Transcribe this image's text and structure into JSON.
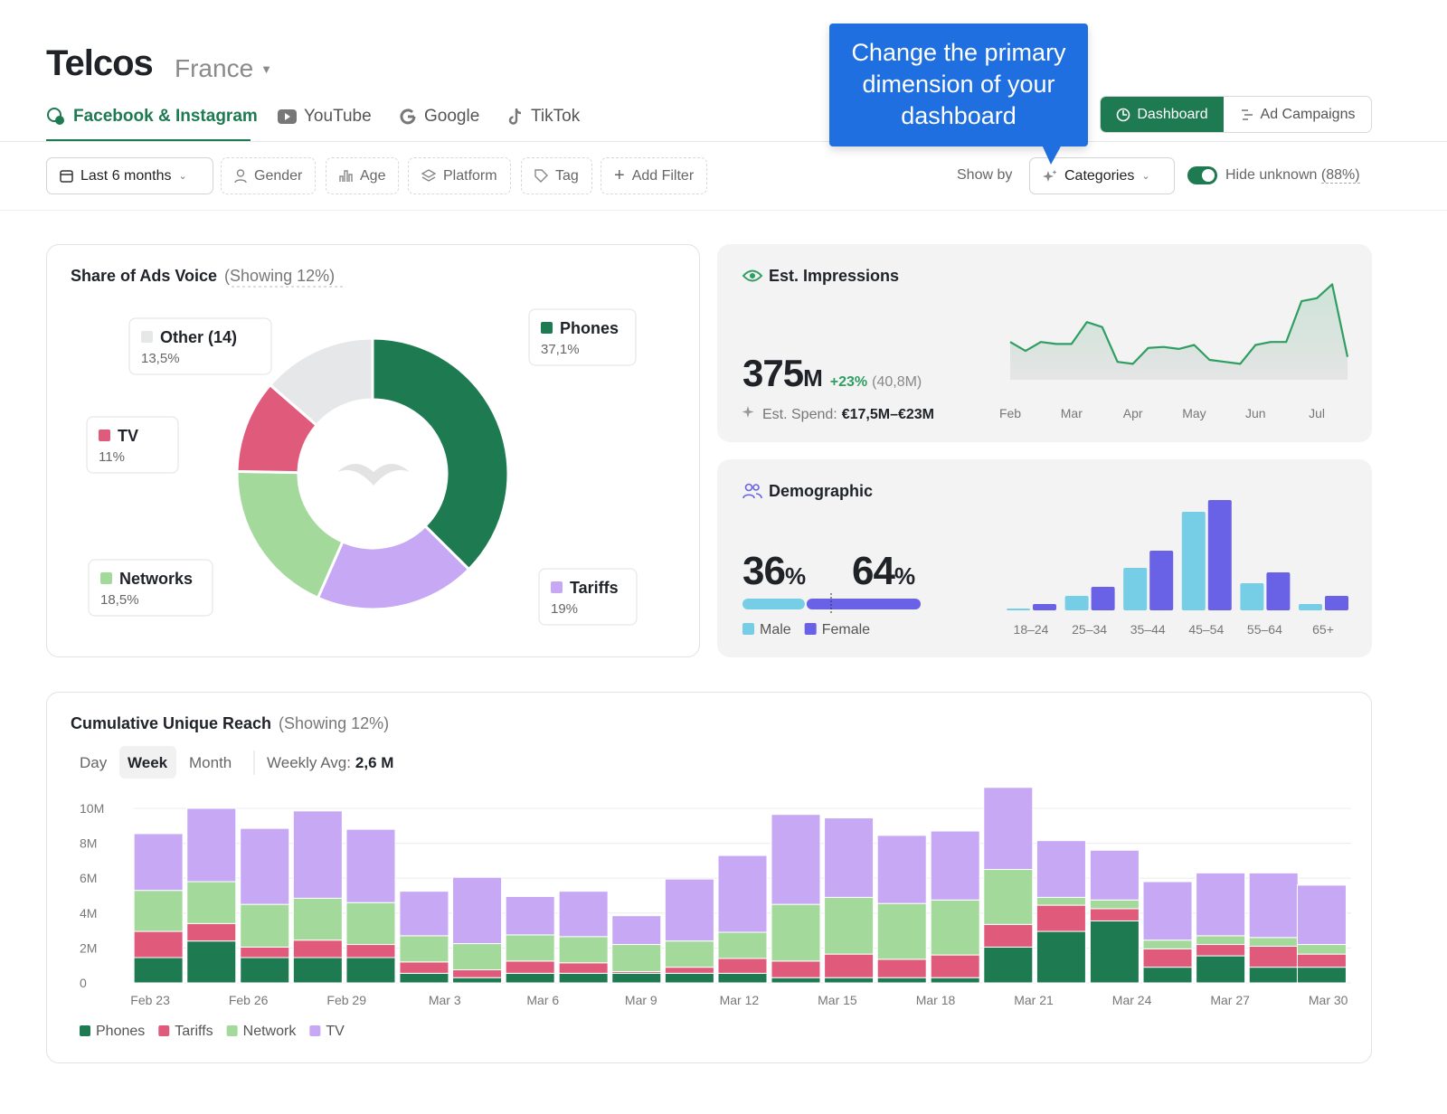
{
  "header": {
    "title": "Telcos",
    "country": "France"
  },
  "tabs": [
    "Facebook & Instagram",
    "YouTube",
    "Google",
    "TikTok"
  ],
  "filters": [
    "Last 6 months",
    "Gender",
    "Age",
    "Platform",
    "Tag",
    "Add Filter"
  ],
  "show_by": {
    "label": "Show by",
    "value": "Categories"
  },
  "hide_unknown": {
    "label": "Hide unknown",
    "value": "(88%)"
  },
  "view_buttons": [
    "Dashboard",
    "Ad Campaigns"
  ],
  "tooltip": "Change the primary dimension of your dashboard",
  "chart_data": [
    {
      "type": "pie",
      "title": "Share of Ads Voice",
      "subtitle": "(Showing 12%)",
      "categories": [
        "Phones",
        "Tariffs",
        "Networks",
        "TV",
        "Other (14)"
      ],
      "values": [
        37.1,
        19,
        18.5,
        11,
        13.5
      ],
      "value_labels": [
        "37,1%",
        "19%",
        "18,5%",
        "11%",
        "13,5%"
      ],
      "colors": [
        "#1e7a50",
        "#c6a8f4",
        "#a4d99c",
        "#e05b7b",
        "#e6e7e9"
      ]
    },
    {
      "type": "line",
      "title": "Est. Impressions",
      "kpi": {
        "value": 375,
        "unit": "M",
        "change": "+23%",
        "previous": "(40,8M)"
      },
      "spend_label": "Est. Spend:",
      "spend": "€17,5M–€23M",
      "categories": [
        "Feb",
        null,
        null,
        null,
        "Mar",
        null,
        null,
        null,
        "Apr",
        null,
        null,
        null,
        "May",
        null,
        null,
        null,
        "Jun",
        null,
        null,
        null,
        "Jul",
        null,
        null
      ],
      "values": [
        38,
        29,
        38,
        36,
        36,
        58,
        53,
        18,
        16,
        32,
        33,
        31,
        35,
        20,
        18,
        16,
        35,
        38,
        38,
        79,
        82,
        96,
        23
      ],
      "ylim": [
        0,
        100
      ],
      "color": "#2e9e62"
    },
    {
      "type": "bar",
      "title": "Demographic",
      "categories": [
        "18–24",
        "25–34",
        "35–44",
        "45–54",
        "55–64",
        "65+"
      ],
      "share_unit": "%",
      "ylim": [
        0,
        125
      ],
      "series": [
        {
          "name": "Male",
          "color": "#76cde6",
          "share": 36,
          "values": [
            2,
            16,
            47,
            109,
            30,
            7
          ]
        },
        {
          "name": "Female",
          "color": "#6a62e6",
          "share": 64,
          "values": [
            7,
            26,
            66,
            122,
            42,
            16
          ]
        }
      ]
    },
    {
      "type": "stacked_bar",
      "title": "Cumulative Unique Reach",
      "subtitle": "(Showing 12%)",
      "periods": [
        "Day",
        "Week",
        "Month"
      ],
      "avg_label": "Weekly Avg:",
      "avg": "2,6 M",
      "x": [
        0.25,
        1.87,
        3.5,
        5.12,
        6.74,
        8.37,
        9.99,
        11.61,
        13.24,
        14.86,
        16.48,
        18.1,
        19.73,
        21.35,
        22.97,
        24.6,
        26.22,
        27.84,
        29.47,
        31.09,
        32.71,
        34.33,
        35.8
      ],
      "xlim": [
        -0.5,
        36.7
      ],
      "xticks": [
        {
          "value": 0,
          "label": "Feb 23"
        },
        {
          "value": 3,
          "label": "Feb 26"
        },
        {
          "value": 6,
          "label": "Feb 29"
        },
        {
          "value": 9,
          "label": "Mar 3"
        },
        {
          "value": 12,
          "label": "Mar 6"
        },
        {
          "value": 15,
          "label": "Mar 9"
        },
        {
          "value": 18,
          "label": "Mar 12"
        },
        {
          "value": 21,
          "label": "Mar 15"
        },
        {
          "value": 24,
          "label": "Mar 18"
        },
        {
          "value": 27,
          "label": "Mar 21"
        },
        {
          "value": 30,
          "label": "Mar 24"
        },
        {
          "value": 33,
          "label": "Mar 27"
        },
        {
          "value": 36,
          "label": "Mar 30"
        }
      ],
      "ylim": [
        0,
        11.5
      ],
      "yticks": [
        0,
        {
          "value": 2,
          "label": "2M"
        },
        {
          "value": 4,
          "label": "4M"
        },
        {
          "value": 6,
          "label": "6M"
        },
        {
          "value": 8,
          "label": "8M"
        },
        {
          "value": 10,
          "label": "10M"
        }
      ],
      "grid": true,
      "series": [
        {
          "name": "Phones",
          "color": "#1e7a50",
          "values": [
            1.45,
            2.4,
            1.45,
            1.45,
            1.45,
            0.55,
            0.3,
            0.55,
            0.55,
            0.55,
            0.55,
            0.55,
            0.3,
            0.3,
            0.3,
            0.3,
            2.05,
            2.95,
            3.55,
            0.9,
            1.55,
            0.9,
            0.9
          ]
        },
        {
          "name": "Tariffs",
          "color": "#e05b7b",
          "values": [
            1.5,
            1.0,
            0.6,
            1.0,
            0.75,
            0.65,
            0.45,
            0.7,
            0.6,
            0.1,
            0.35,
            0.85,
            0.95,
            1.35,
            1.05,
            1.3,
            1.3,
            1.5,
            0.7,
            1.05,
            0.65,
            1.2,
            0.75
          ]
        },
        {
          "name": "Network",
          "color": "#a4d99c",
          "values": [
            2.35,
            2.4,
            2.45,
            2.4,
            2.4,
            1.5,
            1.5,
            1.5,
            1.5,
            1.55,
            1.5,
            1.5,
            3.25,
            3.25,
            3.2,
            3.15,
            3.15,
            0.45,
            0.5,
            0.5,
            0.5,
            0.5,
            0.55
          ]
        },
        {
          "name": "TV",
          "color": "#c6a8f4",
          "values": [
            3.25,
            4.2,
            4.35,
            5.0,
            4.2,
            2.55,
            3.8,
            2.2,
            2.6,
            1.65,
            3.55,
            4.4,
            5.15,
            4.55,
            3.9,
            3.95,
            4.7,
            3.25,
            2.85,
            3.35,
            3.6,
            3.7,
            3.4
          ]
        }
      ]
    }
  ]
}
